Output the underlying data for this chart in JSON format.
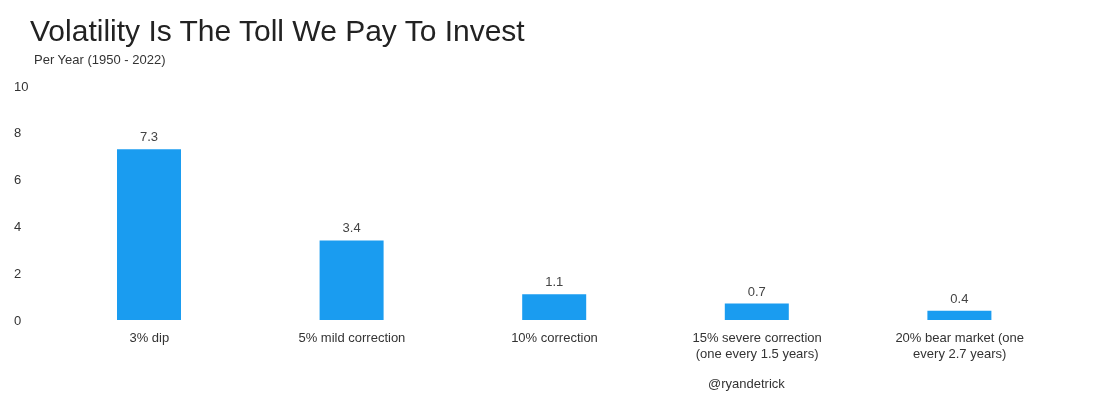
{
  "chart_data": {
    "type": "bar",
    "title": "Volatility Is The Toll We Pay To Invest",
    "subtitle": "Per Year (1950 - 2022)",
    "categories": [
      "3% dip",
      "5% mild correction",
      "10% correction",
      "15% severe correction (one every 1.5 years)",
      "20% bear market (one every 2.7 years)"
    ],
    "values": [
      7.3,
      3.4,
      1.1,
      0.7,
      0.4
    ],
    "color": "#1a9cf0",
    "ylim": [
      0,
      10
    ],
    "yticks": [
      0,
      2,
      4,
      6,
      8,
      10
    ],
    "grid": false,
    "data_labels": true,
    "legend": false,
    "annotations": [
      "@ryandetrick"
    ]
  }
}
